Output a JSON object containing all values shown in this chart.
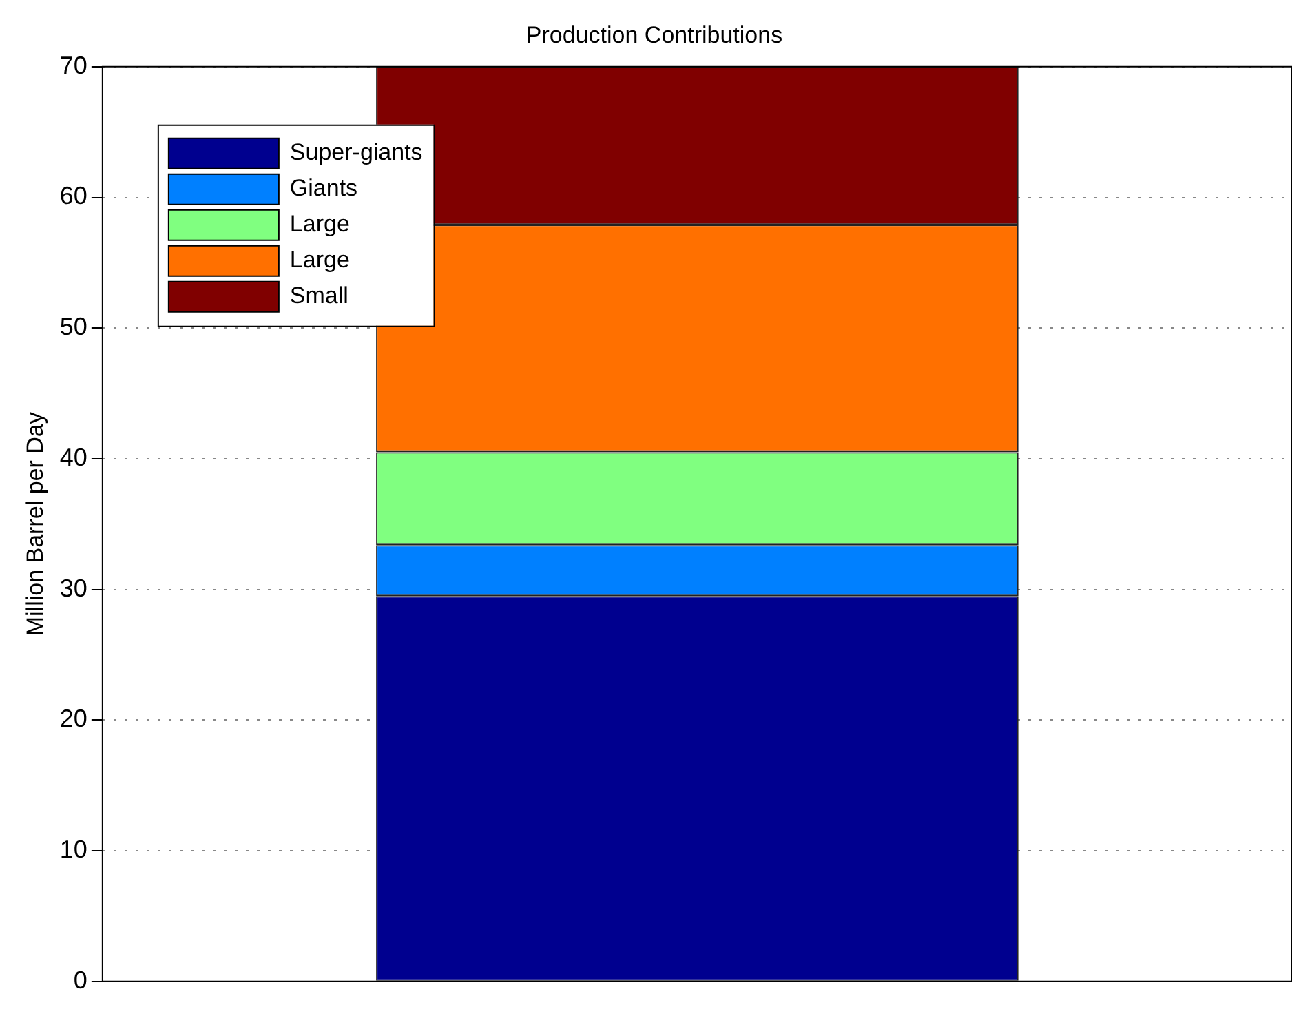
{
  "chart_data": {
    "type": "bar",
    "title": "Production Contributions",
    "ylabel": "Million Barrel per Day",
    "categories": [
      null
    ],
    "stacked": true,
    "series": [
      {
        "name": "Super-giants",
        "color": "#00008f",
        "values": [
          29.5
        ]
      },
      {
        "name": "Giants",
        "color": "#0080ff",
        "values": [
          3.9
        ]
      },
      {
        "name": "Large",
        "color": "#80ff80",
        "values": [
          7.1
        ]
      },
      {
        "name": "Large",
        "color": "#ff7000",
        "values": [
          17.4
        ]
      },
      {
        "name": "Small",
        "color": "#800000",
        "values": [
          12.1
        ]
      }
    ],
    "ylim": [
      0,
      70
    ],
    "yticks": [
      0,
      10,
      20,
      30,
      40,
      50,
      60,
      70
    ],
    "grid": "y",
    "legend": "top left"
  }
}
